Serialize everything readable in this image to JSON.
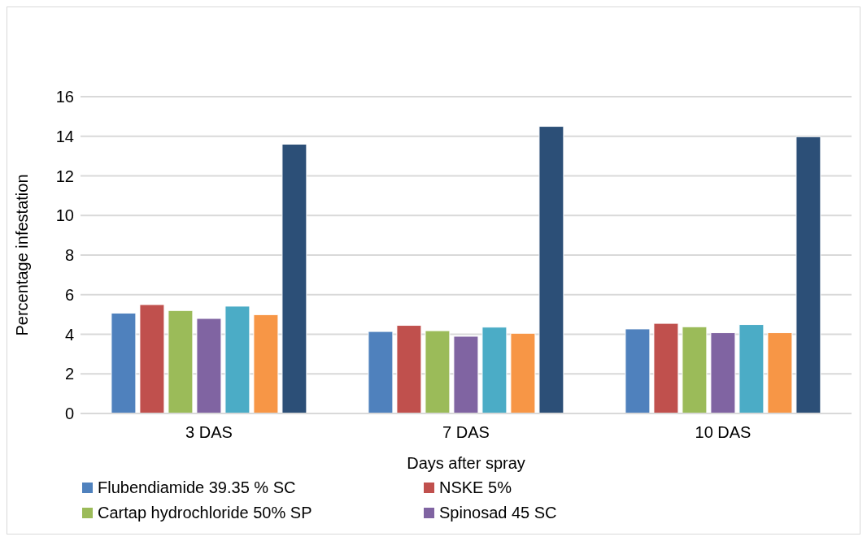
{
  "chart_data": {
    "type": "bar",
    "xlabel": "Days after spray",
    "ylabel": "Percentage infestation",
    "categories": [
      "3 DAS",
      "7 DAS",
      "10 DAS"
    ],
    "series": [
      {
        "name": "Flubendiamide 39.35 % SC",
        "color": "#4f81bd",
        "values": [
          5.07,
          4.14,
          4.27
        ]
      },
      {
        "name": "NSKE 5%",
        "color": "#c0504d",
        "values": [
          5.5,
          4.45,
          4.55
        ]
      },
      {
        "name": "Cartap hydrochloride 50% SP",
        "color": "#9bbb59",
        "values": [
          5.2,
          4.18,
          4.38
        ]
      },
      {
        "name": "Spinosad 45 SC",
        "color": "#8064a2",
        "values": [
          4.8,
          3.9,
          4.08
        ]
      },
      {
        "color": "#4bacc6",
        "values": [
          5.42,
          4.36,
          4.49
        ]
      },
      {
        "color": "#f79646",
        "values": [
          4.99,
          4.05,
          4.08
        ]
      },
      {
        "color": "#2c4f77",
        "values": [
          13.6,
          14.5,
          13.98
        ]
      }
    ],
    "ylim": [
      0,
      16
    ],
    "yticks": [
      0,
      2,
      4,
      6,
      8,
      10,
      12,
      14,
      16
    ],
    "grid": "y",
    "legend": "bottom"
  }
}
